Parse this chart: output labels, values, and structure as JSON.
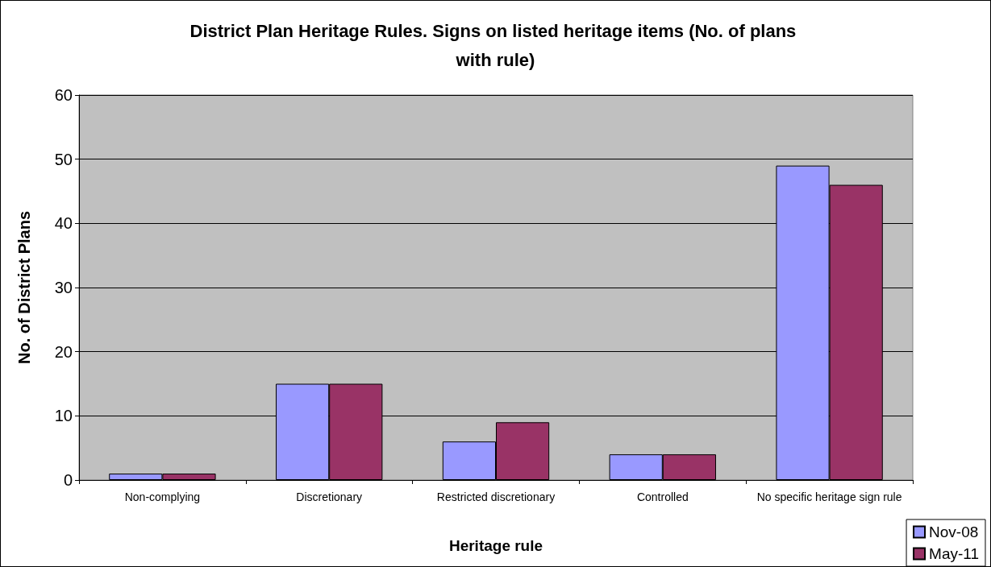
{
  "chart_data": {
    "type": "bar",
    "title": "District Plan Heritage Rules. Signs on listed heritage items (No. of plans with rule)",
    "xlabel": "Heritage rule",
    "ylabel": "No. of District Plans",
    "categories": [
      "Non-complying",
      "Discretionary",
      "Restricted discretionary",
      "Controlled",
      "No specific heritage sign rule"
    ],
    "series": [
      {
        "name": "Nov-08",
        "color": "#9999ff",
        "values": [
          1,
          15,
          6,
          4,
          49
        ]
      },
      {
        "name": "May-11",
        "color": "#993366",
        "values": [
          1,
          15,
          9,
          4,
          46
        ]
      }
    ],
    "ylim": [
      0,
      60
    ],
    "yticks": [
      0,
      10,
      20,
      30,
      40,
      50,
      60
    ],
    "grid": "y",
    "legend": "bottom right"
  }
}
